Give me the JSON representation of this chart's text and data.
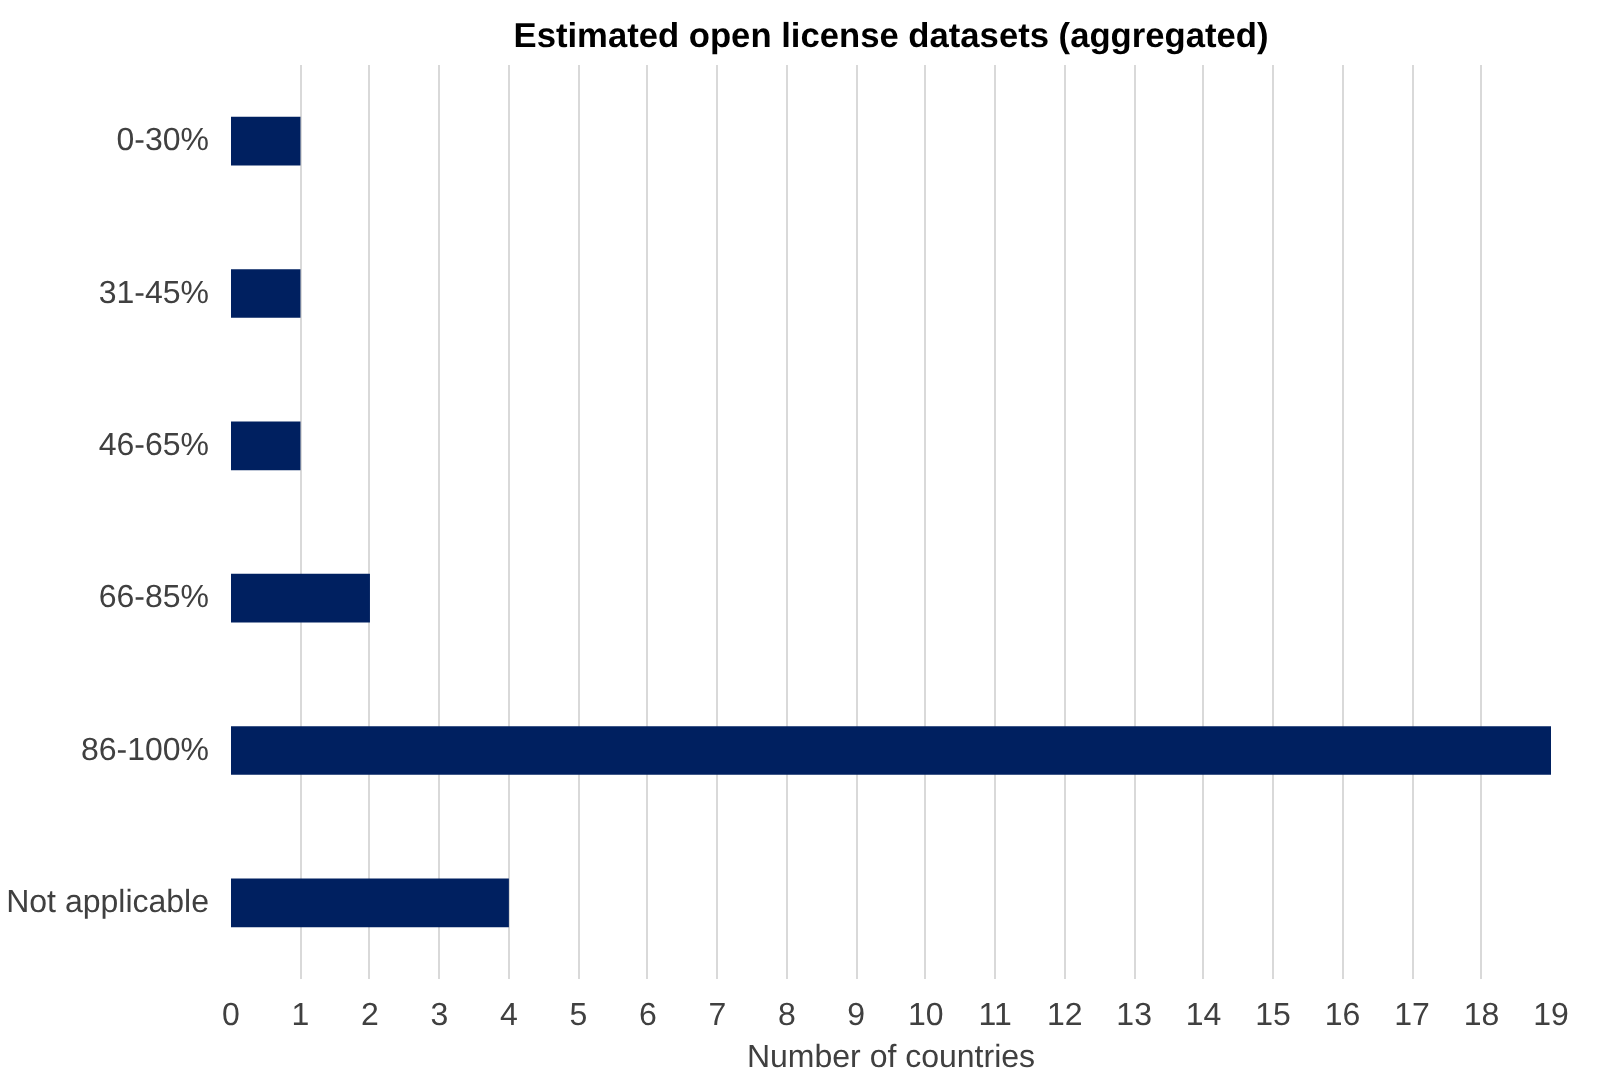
{
  "chart_data": {
    "type": "bar",
    "orientation": "horizontal",
    "title": "Estimated open license datasets (aggregated)",
    "xlabel": "Number of countries",
    "categories": [
      "0-30%",
      "31-45%",
      "46-65%",
      "66-85%",
      "86-100%",
      "Not applicable"
    ],
    "values": [
      1,
      1,
      1,
      2,
      19,
      4
    ],
    "color": "#002060",
    "xlim": [
      0,
      19
    ],
    "xticks": [
      0,
      1,
      2,
      3,
      4,
      5,
      6,
      7,
      8,
      9,
      10,
      11,
      12,
      13,
      14,
      15,
      16,
      17,
      18,
      19
    ],
    "grid": "x"
  }
}
